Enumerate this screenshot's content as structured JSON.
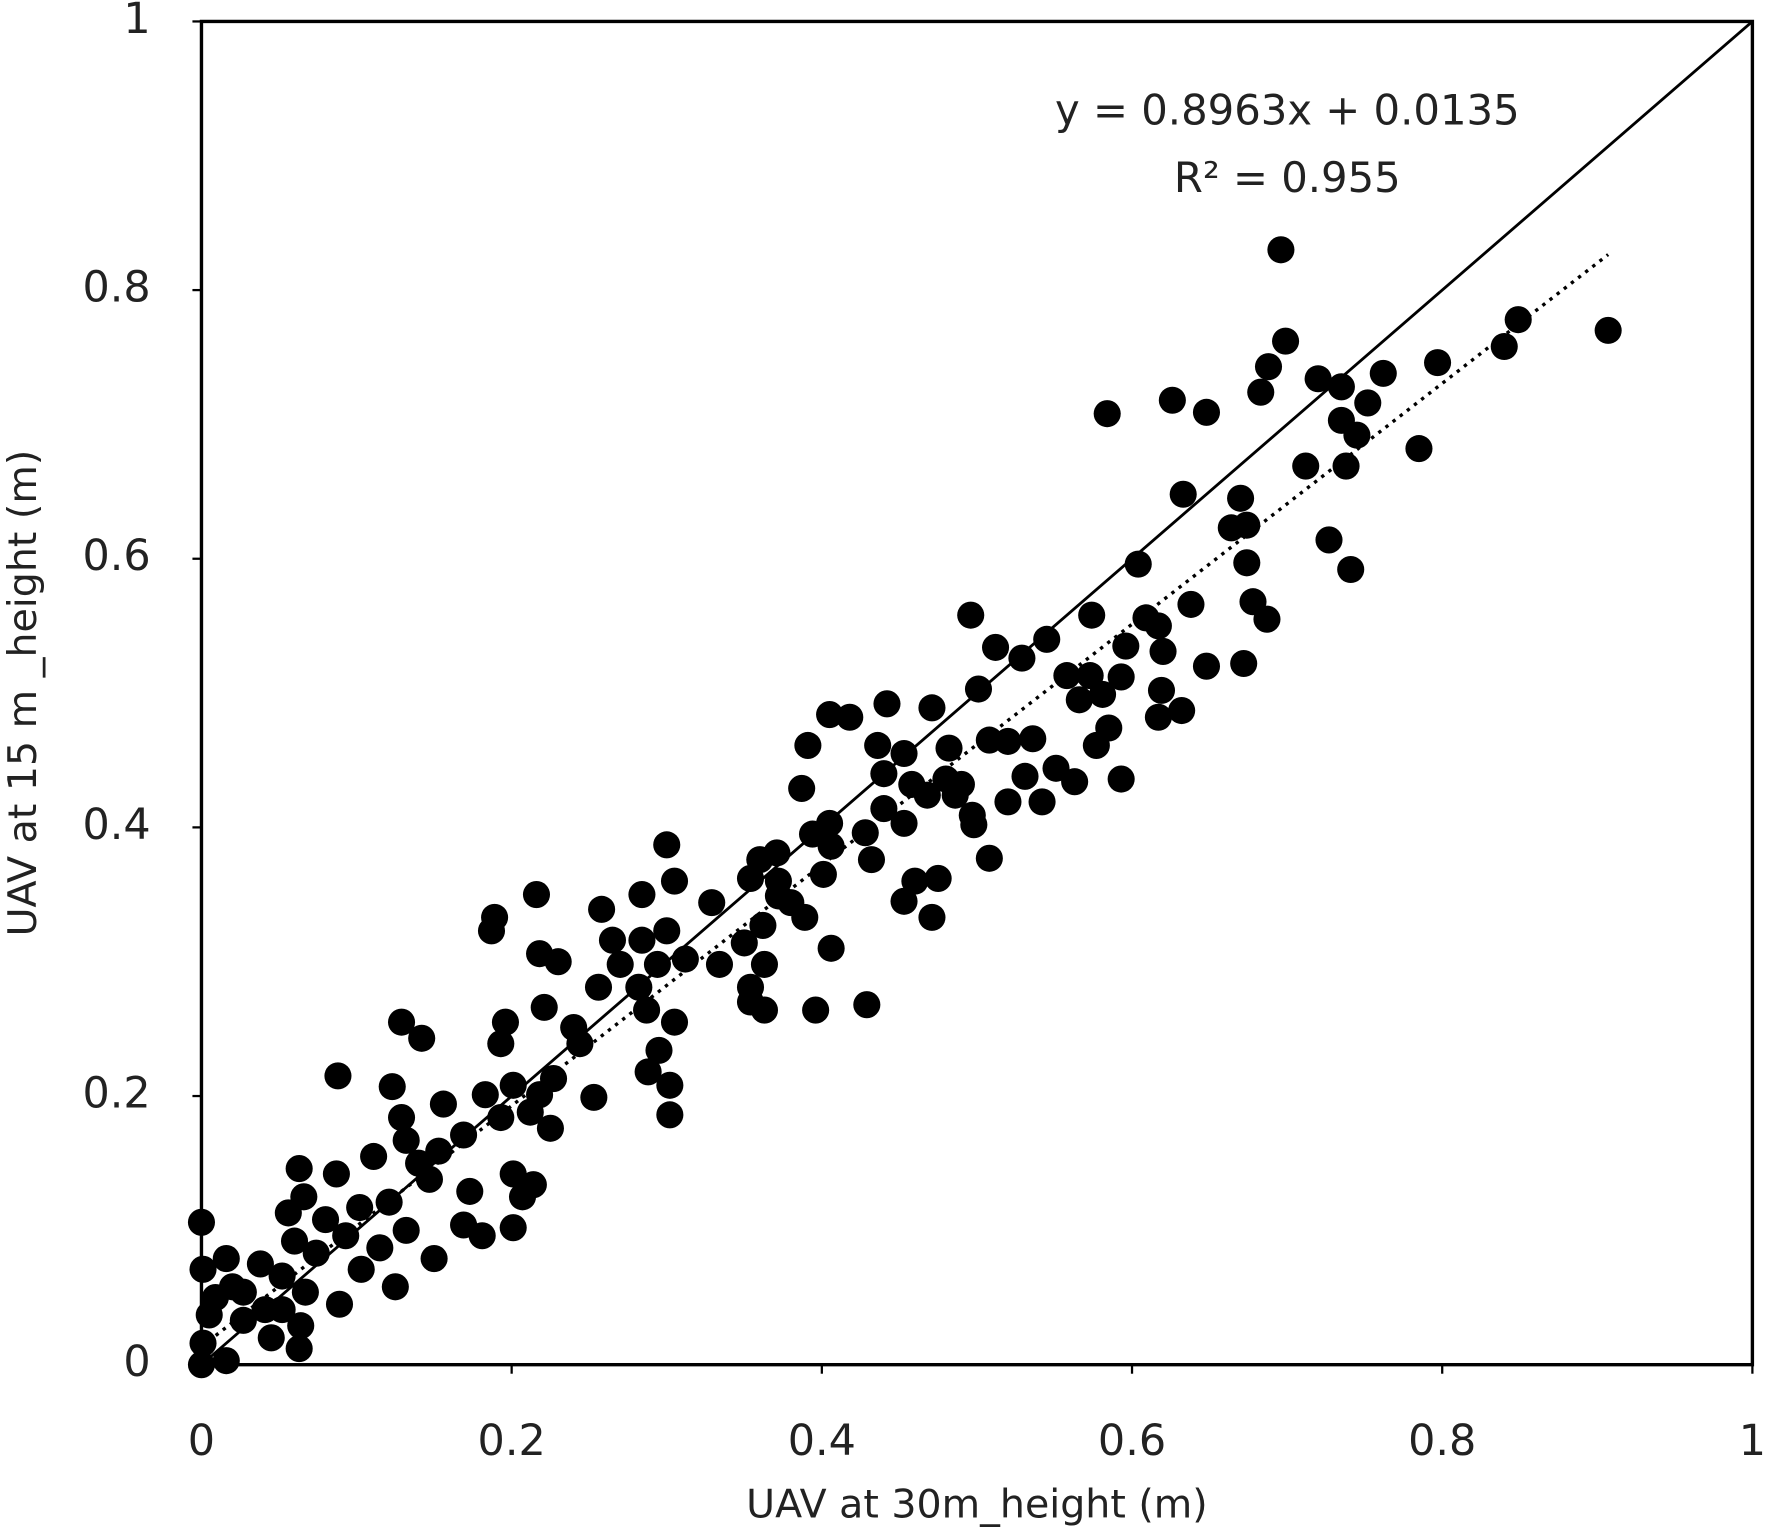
{
  "chart_data": {
    "type": "scatter",
    "xlabel": "UAV at 30m_height (m)",
    "ylabel": "UAV at 15 m _height (m)",
    "annotations": [
      "y = 0.8963x + 0.0135",
      "R² = 0.955"
    ],
    "trendline": {
      "slope": 0.8963,
      "intercept": 0.0135
    },
    "identity_line": true,
    "color": "#000000",
    "xlim": [
      0,
      1
    ],
    "ylim": [
      0,
      1
    ],
    "xticks": [
      0,
      0.2,
      0.4,
      0.6,
      0.8,
      1
    ],
    "yticks": [
      0,
      0.2,
      0.4,
      0.6,
      0.8,
      1
    ],
    "x": [
      0.696,
      0.907,
      0.849,
      0.84,
      0.797,
      0.699,
      0.688,
      0.683,
      0.72,
      0.762,
      0.735,
      0.752,
      0.735,
      0.745,
      0.785,
      0.712,
      0.738,
      0.584,
      0.626,
      0.648,
      0.633,
      0.67,
      0.674,
      0.664,
      0.727,
      0.674,
      0.741,
      0.604,
      0.638,
      0.678,
      0.687,
      0.496,
      0.574,
      0.609,
      0.617,
      0.596,
      0.545,
      0.512,
      0.529,
      0.62,
      0.648,
      0.672,
      0.558,
      0.573,
      0.593,
      0.501,
      0.566,
      0.581,
      0.619,
      0.632,
      0.617,
      0.442,
      0.471,
      0.405,
      0.418,
      0.508,
      0.52,
      0.536,
      0.577,
      0.585,
      0.391,
      0.436,
      0.453,
      0.482,
      0.44,
      0.458,
      0.48,
      0.49,
      0.531,
      0.551,
      0.563,
      0.593,
      0.387,
      0.468,
      0.486,
      0.52,
      0.542,
      0.44,
      0.497,
      0.453,
      0.498,
      0.405,
      0.394,
      0.428,
      0.406,
      0.3,
      0.371,
      0.432,
      0.508,
      0.36,
      0.401,
      0.354,
      0.305,
      0.372,
      0.46,
      0.475,
      0.284,
      0.216,
      0.372,
      0.453,
      0.38,
      0.329,
      0.258,
      0.389,
      0.471,
      0.189,
      0.187,
      0.3,
      0.362,
      0.265,
      0.284,
      0.35,
      0.406,
      0.218,
      0.23,
      0.312,
      0.294,
      0.27,
      0.334,
      0.363,
      0.354,
      0.282,
      0.256,
      0.354,
      0.429,
      0.396,
      0.363,
      0.221,
      0.287,
      0.129,
      0.142,
      0.196,
      0.305,
      0.24,
      0.193,
      0.244,
      0.295,
      0.288,
      0.088,
      0.302,
      0.227,
      0.201,
      0.123,
      0.253,
      0.218,
      0.183,
      0.156,
      0.212,
      0.302,
      0.129,
      0.193,
      0.225,
      0.169,
      0.132,
      0.153,
      0.111,
      0.14,
      0.063,
      0.087,
      0.201,
      0.147,
      0.214,
      0.173,
      0.066,
      0.121,
      0.207,
      0.102,
      0.056,
      0.08,
      0.169,
      0.132,
      0.201,
      0.093,
      0.181,
      0.0,
      0.06,
      0.115,
      0.074,
      0.016,
      0.038,
      0.15,
      0.103,
      0.125,
      0.052,
      0.001,
      0.02,
      0.067,
      0.089,
      0.041,
      0.005,
      0.027,
      0.064,
      0.045,
      0.001,
      0.063,
      0.016,
      0.0,
      0.009,
      0.027,
      0.052
    ],
    "values": [
      0.83,
      0.77,
      0.778,
      0.758,
      0.746,
      0.762,
      0.743,
      0.724,
      0.734,
      0.738,
      0.728,
      0.716,
      0.703,
      0.692,
      0.682,
      0.669,
      0.669,
      0.708,
      0.718,
      0.709,
      0.648,
      0.645,
      0.625,
      0.623,
      0.614,
      0.597,
      0.592,
      0.596,
      0.566,
      0.568,
      0.555,
      0.558,
      0.558,
      0.556,
      0.55,
      0.535,
      0.54,
      0.534,
      0.526,
      0.531,
      0.52,
      0.522,
      0.513,
      0.513,
      0.512,
      0.503,
      0.495,
      0.499,
      0.502,
      0.487,
      0.482,
      0.492,
      0.489,
      0.484,
      0.482,
      0.465,
      0.464,
      0.466,
      0.461,
      0.474,
      0.461,
      0.461,
      0.455,
      0.459,
      0.44,
      0.432,
      0.436,
      0.432,
      0.438,
      0.444,
      0.434,
      0.436,
      0.429,
      0.424,
      0.424,
      0.419,
      0.419,
      0.414,
      0.409,
      0.403,
      0.402,
      0.403,
      0.395,
      0.396,
      0.386,
      0.387,
      0.381,
      0.376,
      0.377,
      0.376,
      0.365,
      0.362,
      0.36,
      0.36,
      0.36,
      0.362,
      0.35,
      0.35,
      0.349,
      0.345,
      0.344,
      0.344,
      0.339,
      0.333,
      0.333,
      0.333,
      0.323,
      0.323,
      0.327,
      0.316,
      0.316,
      0.314,
      0.31,
      0.306,
      0.3,
      0.302,
      0.298,
      0.298,
      0.298,
      0.298,
      0.281,
      0.281,
      0.281,
      0.27,
      0.268,
      0.264,
      0.264,
      0.266,
      0.264,
      0.255,
      0.243,
      0.255,
      0.255,
      0.251,
      0.239,
      0.239,
      0.234,
      0.218,
      0.215,
      0.208,
      0.213,
      0.208,
      0.207,
      0.199,
      0.201,
      0.201,
      0.194,
      0.188,
      0.186,
      0.184,
      0.184,
      0.176,
      0.171,
      0.167,
      0.159,
      0.155,
      0.15,
      0.146,
      0.142,
      0.142,
      0.138,
      0.134,
      0.129,
      0.125,
      0.121,
      0.125,
      0.117,
      0.113,
      0.108,
      0.104,
      0.1,
      0.102,
      0.096,
      0.096,
      0.106,
      0.092,
      0.087,
      0.083,
      0.079,
      0.075,
      0.079,
      0.071,
      0.058,
      0.066,
      0.071,
      0.058,
      0.054,
      0.045,
      0.041,
      0.037,
      0.033,
      0.029,
      0.02,
      0.016,
      0.012,
      0.003,
      0.0,
      0.05,
      0.054,
      0.041
    ]
  }
}
